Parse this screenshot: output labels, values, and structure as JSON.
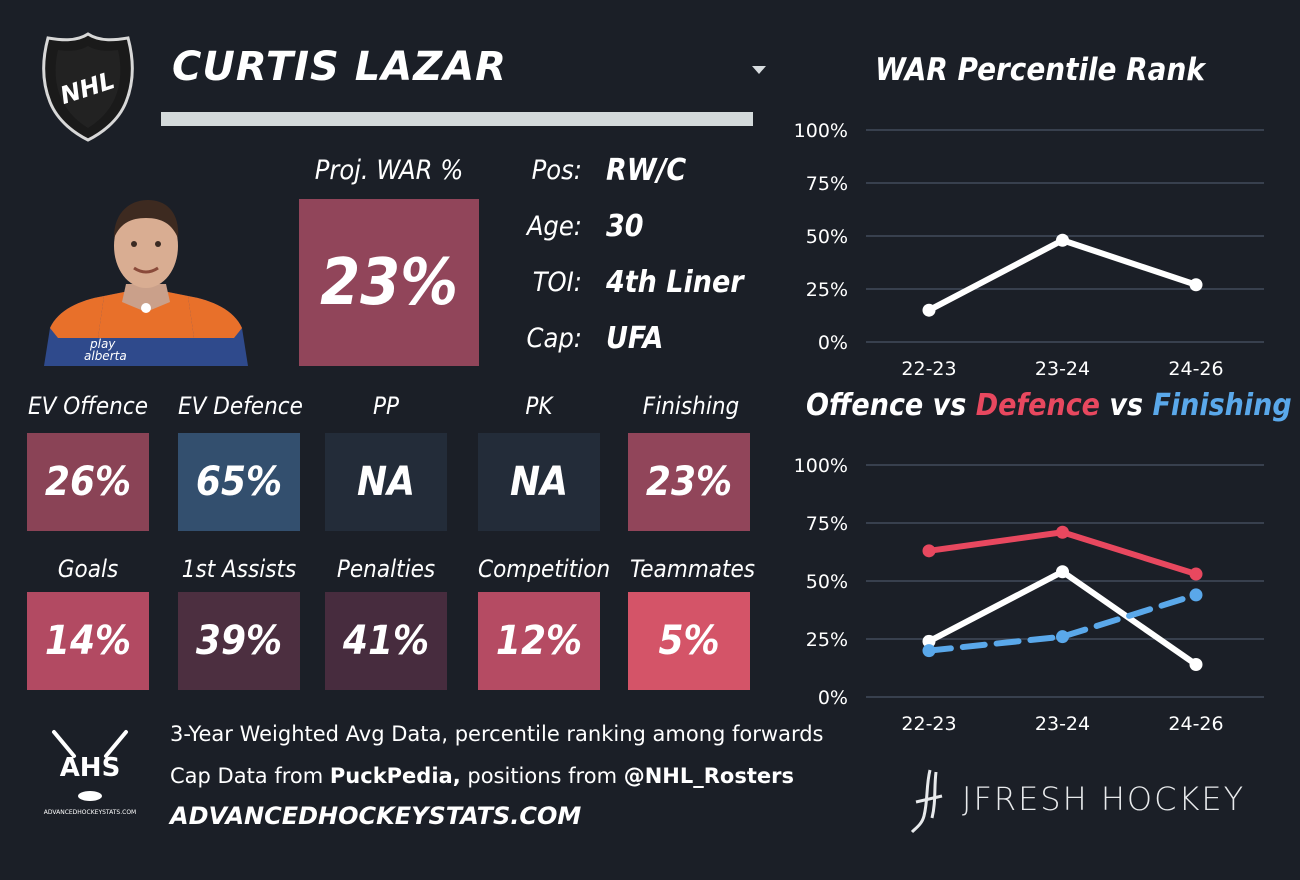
{
  "player": {
    "name": "CURTIS LAZAR",
    "war_label": "Proj. WAR %",
    "war_value": "23%",
    "war_color": "#91455a"
  },
  "info": [
    {
      "label": "Pos:",
      "value": "RW/C"
    },
    {
      "label": "Age:",
      "value": "30"
    },
    {
      "label": "TOI:",
      "value": "4th Liner"
    },
    {
      "label": "Cap:",
      "value": "UFA"
    }
  ],
  "tiles_row1": [
    {
      "label": "EV Offence",
      "value": "26%",
      "color": "#8a4356"
    },
    {
      "label": "EV Defence",
      "value": "65%",
      "color": "#334f6e"
    },
    {
      "label": "PP",
      "value": "NA",
      "color": "#232c39"
    },
    {
      "label": "PK",
      "value": "NA",
      "color": "#232c39"
    },
    {
      "label": "Finishing",
      "value": "23%",
      "color": "#91455a"
    }
  ],
  "tiles_row2": [
    {
      "label": "Goals",
      "value": "14%",
      "color": "#b24a62"
    },
    {
      "label": "1st Assists",
      "value": "39%",
      "color": "#4c2f40"
    },
    {
      "label": "Penalties",
      "value": "41%",
      "color": "#472c3e"
    },
    {
      "label": "Competition",
      "value": "12%",
      "color": "#b54b63"
    },
    {
      "label": "Teammates",
      "value": "5%",
      "color": "#d45468"
    }
  ],
  "footer": {
    "line1": "3-Year Weighted Avg Data, percentile ranking among forwards",
    "line2_pre": "Cap Data from ",
    "line2_b1": "PuckPedia,",
    "line2_mid": " positions from ",
    "line2_b2": "@NHL_Rosters",
    "site": "ADVANCEDHOCKEYSTATS.COM",
    "ahs_logo_text": "AHS",
    "ahs_logo_sub": "ADVANCEDHOCKEYSTATS.COM",
    "jfresh": "JFRESH HOCKEY",
    "nhl_logo_text": "NHL"
  },
  "chart_titles": {
    "war": "WAR Percentile Rank",
    "ovd_offence": "Offence",
    "ovd_vs1": " vs ",
    "ovd_defence": "Defence",
    "ovd_vs2": " vs ",
    "ovd_finishing": "Finishing"
  },
  "chart_data": [
    {
      "type": "line",
      "title": "WAR Percentile Rank",
      "categories": [
        "22-23",
        "23-24",
        "24-26"
      ],
      "ylim": [
        0,
        100
      ],
      "yticks": [
        "0%",
        "25%",
        "50%",
        "75%",
        "100%"
      ],
      "grid": true,
      "series": [
        {
          "values": [
            15,
            48,
            27
          ],
          "color": "#ffffff",
          "dash": false
        }
      ]
    },
    {
      "type": "line",
      "title": "Offence vs Defence vs Finishing",
      "categories": [
        "22-23",
        "23-24",
        "24-26"
      ],
      "ylim": [
        0,
        100
      ],
      "yticks": [
        "0%",
        "25%",
        "50%",
        "75%",
        "100%"
      ],
      "grid": true,
      "series": [
        {
          "name": "Defence",
          "values": [
            63,
            71,
            53
          ],
          "color": "#e8485f",
          "dash": false
        },
        {
          "name": "Offence",
          "values": [
            24,
            54,
            14
          ],
          "color": "#ffffff",
          "dash": false
        },
        {
          "name": "Finishing",
          "values": [
            20,
            26,
            44
          ],
          "color": "#5aa8ea",
          "dash": true
        }
      ]
    }
  ]
}
